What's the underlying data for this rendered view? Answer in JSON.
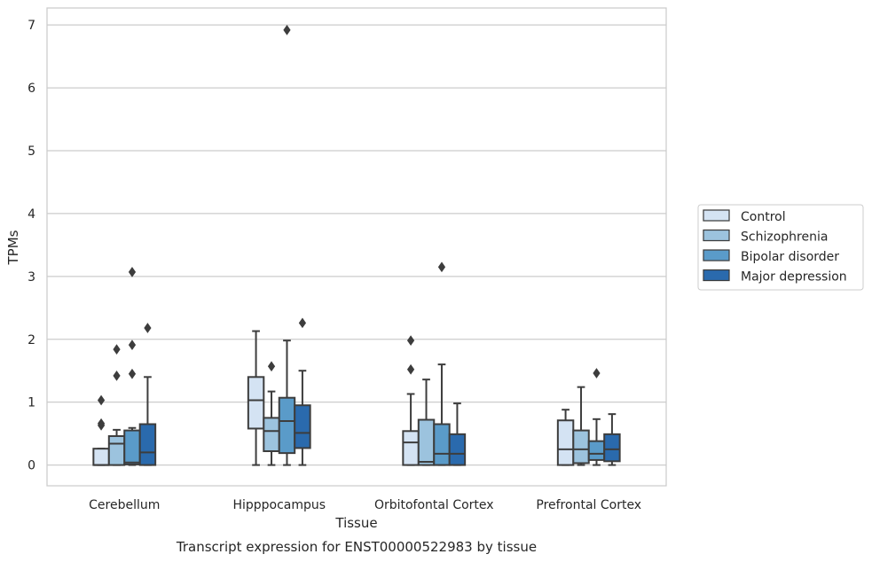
{
  "chart_data": {
    "type": "box",
    "title": "",
    "xlabel": "Tissue",
    "ylabel": "TPMs",
    "caption": "Transcript expression for ENST00000522983 by tissue",
    "ylim": [
      -0.33,
      7.27
    ],
    "yticks": [
      0,
      1,
      2,
      3,
      4,
      5,
      6,
      7
    ],
    "grid": "horizontal",
    "legend_position": "right",
    "categories": [
      "Cerebellum",
      "Hipppocampus",
      "Orbitofontal Cortex",
      "Prefrontal Cortex"
    ],
    "series": [
      {
        "name": "Control",
        "color": "#d4e3f3",
        "boxes": [
          {
            "whislo": 0,
            "q1": 0,
            "med": 0,
            "q3": 0.26,
            "whishi": 0.26,
            "fliers": [
              0.63,
              0.66,
              1.03
            ]
          },
          {
            "whislo": 0,
            "q1": 0.58,
            "med": 1.03,
            "q3": 1.4,
            "whishi": 2.13,
            "fliers": []
          },
          {
            "whislo": 0,
            "q1": 0,
            "med": 0.36,
            "q3": 0.54,
            "whishi": 1.13,
            "fliers": [
              1.52,
              1.98
            ]
          },
          {
            "whislo": 0,
            "q1": 0,
            "med": 0.25,
            "q3": 0.71,
            "whishi": 0.88,
            "fliers": []
          }
        ]
      },
      {
        "name": "Schizophrenia",
        "color": "#9cc3de",
        "boxes": [
          {
            "whislo": 0,
            "q1": 0,
            "med": 0.34,
            "q3": 0.46,
            "whishi": 0.56,
            "fliers": [
              1.42,
              1.84
            ]
          },
          {
            "whislo": 0,
            "q1": 0.22,
            "med": 0.54,
            "q3": 0.75,
            "whishi": 1.17,
            "fliers": [
              1.57
            ]
          },
          {
            "whislo": 0,
            "q1": 0,
            "med": 0.05,
            "q3": 0.72,
            "whishi": 1.36,
            "fliers": []
          },
          {
            "whislo": 0,
            "q1": 0.03,
            "med": 0.25,
            "q3": 0.55,
            "whishi": 1.24,
            "fliers": []
          }
        ]
      },
      {
        "name": "Bipolar disorder",
        "color": "#5a9bc9",
        "boxes": [
          {
            "whislo": 0,
            "q1": 0.01,
            "med": 0.04,
            "q3": 0.55,
            "whishi": 0.59,
            "fliers": [
              1.45,
              1.91,
              3.07
            ]
          },
          {
            "whislo": 0,
            "q1": 0.19,
            "med": 0.7,
            "q3": 1.07,
            "whishi": 1.98,
            "fliers": [
              6.92
            ]
          },
          {
            "whislo": 0,
            "q1": 0,
            "med": 0.18,
            "q3": 0.65,
            "whishi": 1.6,
            "fliers": [
              3.15
            ]
          },
          {
            "whislo": 0,
            "q1": 0.08,
            "med": 0.18,
            "q3": 0.38,
            "whishi": 0.73,
            "fliers": [
              1.46
            ]
          }
        ]
      },
      {
        "name": "Major depression",
        "color": "#2a6aad",
        "boxes": [
          {
            "whislo": 0,
            "q1": 0,
            "med": 0.2,
            "q3": 0.65,
            "whishi": 1.4,
            "fliers": [
              2.18
            ]
          },
          {
            "whislo": 0,
            "q1": 0.27,
            "med": 0.51,
            "q3": 0.95,
            "whishi": 1.5,
            "fliers": [
              2.26
            ]
          },
          {
            "whislo": 0,
            "q1": 0,
            "med": 0.18,
            "q3": 0.49,
            "whishi": 0.98,
            "fliers": []
          },
          {
            "whislo": 0,
            "q1": 0.06,
            "med": 0.25,
            "q3": 0.49,
            "whishi": 0.81,
            "fliers": []
          }
        ]
      }
    ]
  }
}
